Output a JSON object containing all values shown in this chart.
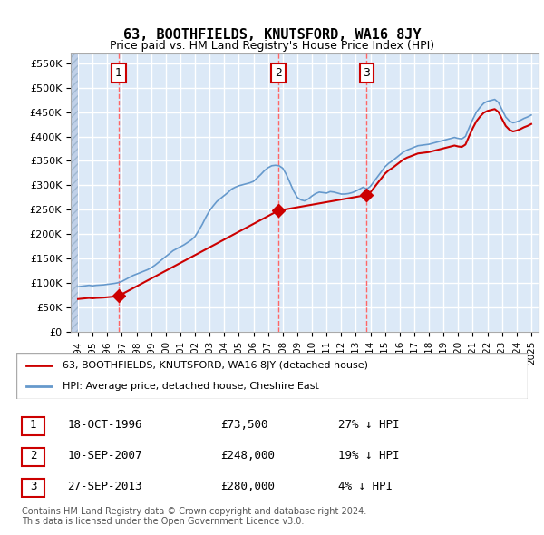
{
  "title": "63, BOOTHFIELDS, KNUTSFORD, WA16 8JY",
  "subtitle": "Price paid vs. HM Land Registry's House Price Index (HPI)",
  "xlabel": "",
  "ylabel": "",
  "background_color": "#ffffff",
  "plot_bg_color": "#dce9f7",
  "hatch_color": "#c0d0e8",
  "grid_color": "#ffffff",
  "ylim": [
    0,
    570000
  ],
  "yticks": [
    0,
    50000,
    100000,
    150000,
    200000,
    250000,
    300000,
    350000,
    400000,
    450000,
    500000,
    550000
  ],
  "ytick_labels": [
    "£0",
    "£50K",
    "£100K",
    "£150K",
    "£200K",
    "£250K",
    "£300K",
    "£350K",
    "£400K",
    "£450K",
    "£500K",
    "£550K"
  ],
  "xlim_start": 1993.5,
  "xlim_end": 2025.5,
  "xtick_years": [
    1994,
    1995,
    1996,
    1997,
    1998,
    1999,
    2000,
    2001,
    2002,
    2003,
    2004,
    2005,
    2006,
    2007,
    2008,
    2009,
    2010,
    2011,
    2012,
    2013,
    2014,
    2015,
    2016,
    2017,
    2018,
    2019,
    2020,
    2021,
    2022,
    2023,
    2024,
    2025
  ],
  "sale_dates": [
    1996.79,
    2007.69,
    2013.74
  ],
  "sale_prices": [
    73500,
    248000,
    280000
  ],
  "sale_labels": [
    "1",
    "2",
    "3"
  ],
  "hpi_years": [
    1994.0,
    1994.25,
    1994.5,
    1994.75,
    1995.0,
    1995.25,
    1995.5,
    1995.75,
    1996.0,
    1996.25,
    1996.5,
    1996.75,
    1997.0,
    1997.25,
    1997.5,
    1997.75,
    1998.0,
    1998.25,
    1998.5,
    1998.75,
    1999.0,
    1999.25,
    1999.5,
    1999.75,
    2000.0,
    2000.25,
    2000.5,
    2000.75,
    2001.0,
    2001.25,
    2001.5,
    2001.75,
    2002.0,
    2002.25,
    2002.5,
    2002.75,
    2003.0,
    2003.25,
    2003.5,
    2003.75,
    2004.0,
    2004.25,
    2004.5,
    2004.75,
    2005.0,
    2005.25,
    2005.5,
    2005.75,
    2006.0,
    2006.25,
    2006.5,
    2006.75,
    2007.0,
    2007.25,
    2007.5,
    2007.75,
    2008.0,
    2008.25,
    2008.5,
    2008.75,
    2009.0,
    2009.25,
    2009.5,
    2009.75,
    2010.0,
    2010.25,
    2010.5,
    2010.75,
    2011.0,
    2011.25,
    2011.5,
    2011.75,
    2012.0,
    2012.25,
    2012.5,
    2012.75,
    2013.0,
    2013.25,
    2013.5,
    2013.75,
    2014.0,
    2014.25,
    2014.5,
    2014.75,
    2015.0,
    2015.25,
    2015.5,
    2015.75,
    2016.0,
    2016.25,
    2016.5,
    2016.75,
    2017.0,
    2017.25,
    2017.5,
    2017.75,
    2018.0,
    2018.25,
    2018.5,
    2018.75,
    2019.0,
    2019.25,
    2019.5,
    2019.75,
    2020.0,
    2020.25,
    2020.5,
    2020.75,
    2021.0,
    2021.25,
    2021.5,
    2021.75,
    2022.0,
    2022.25,
    2022.5,
    2022.75,
    2023.0,
    2023.25,
    2023.5,
    2023.75,
    2024.0,
    2024.25,
    2024.5,
    2024.75,
    2025.0
  ],
  "hpi_values": [
    92000,
    93000,
    94000,
    95000,
    94000,
    95000,
    95500,
    96000,
    97000,
    98000,
    99000,
    100500,
    103000,
    107000,
    111000,
    115000,
    118000,
    121000,
    124000,
    127000,
    131000,
    136000,
    142000,
    148000,
    154000,
    160000,
    166000,
    170000,
    174000,
    178000,
    183000,
    188000,
    195000,
    207000,
    220000,
    235000,
    248000,
    258000,
    267000,
    273000,
    279000,
    285000,
    292000,
    296000,
    299000,
    301000,
    303000,
    305000,
    308000,
    315000,
    322000,
    330000,
    336000,
    340000,
    341000,
    340000,
    335000,
    322000,
    305000,
    288000,
    275000,
    270000,
    268000,
    272000,
    278000,
    283000,
    286000,
    285000,
    284000,
    287000,
    286000,
    284000,
    282000,
    282000,
    283000,
    285000,
    288000,
    292000,
    296000,
    292000,
    298000,
    308000,
    318000,
    328000,
    338000,
    345000,
    350000,
    356000,
    362000,
    368000,
    372000,
    375000,
    378000,
    381000,
    382000,
    383000,
    384000,
    386000,
    388000,
    390000,
    392000,
    394000,
    396000,
    398000,
    396000,
    395000,
    400000,
    418000,
    435000,
    450000,
    460000,
    468000,
    472000,
    474000,
    476000,
    470000,
    455000,
    440000,
    432000,
    428000,
    430000,
    433000,
    437000,
    440000,
    444000
  ],
  "red_line_color": "#cc0000",
  "blue_line_color": "#6699cc",
  "red_dot_color": "#cc0000",
  "legend_label_red": "63, BOOTHFIELDS, KNUTSFORD, WA16 8JY (detached house)",
  "legend_label_blue": "HPI: Average price, detached house, Cheshire East",
  "table_rows": [
    [
      "1",
      "18-OCT-1996",
      "£73,500",
      "27% ↓ HPI"
    ],
    [
      "2",
      "10-SEP-2007",
      "£248,000",
      "19% ↓ HPI"
    ],
    [
      "3",
      "27-SEP-2013",
      "£280,000",
      "4% ↓ HPI"
    ]
  ],
  "footer_text": "Contains HM Land Registry data © Crown copyright and database right 2024.\nThis data is licensed under the Open Government Licence v3.0.",
  "vline_color": "#ff6666",
  "label_box_color": "#ffffff",
  "label_box_edge": "#cc0000"
}
